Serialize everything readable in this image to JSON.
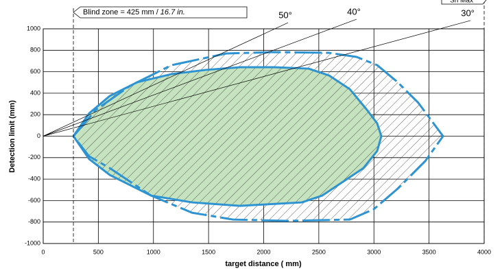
{
  "chart_data": {
    "type": "zone",
    "xlabel": "target distance ( mm)",
    "ylabel": "Detection limit (mm)",
    "xlim": [
      0,
      4000
    ],
    "ylim": [
      -1000,
      1000
    ],
    "xticks": [
      0,
      500,
      1000,
      1500,
      2000,
      2500,
      3000,
      3500,
      4000
    ],
    "yticks": [
      -1000,
      -800,
      -600,
      -400,
      -200,
      0,
      200,
      400,
      600,
      800,
      1000
    ],
    "grid": true,
    "series": [
      {
        "color": "#2e93d1",
        "fill": "hatch",
        "dashed": true,
        "x": [
          274,
          479,
          790,
          1163,
          1660,
          2096,
          2594,
          2843,
          3030,
          3216,
          3403,
          3627,
          3465,
          3216,
          2998,
          2781,
          2221,
          1723,
          1350,
          977,
          603,
          417
        ],
        "values": [
          0,
          246,
          470,
          661,
          770,
          783,
          776,
          738,
          661,
          502,
          310,
          0,
          -233,
          -489,
          -681,
          -777,
          -789,
          -777,
          -713,
          -553,
          -297,
          -188
        ]
      },
      {
        "color": "#2e93d1",
        "fill": "#c6e3bf",
        "dashed": false,
        "x": [
          274,
          417,
          603,
          852,
          1163,
          1474,
          1785,
          2096,
          2407,
          2594,
          2781,
          2936,
          3030,
          3067,
          3030,
          2905,
          2719,
          2532,
          2346,
          1785,
          1350,
          977,
          603,
          417
        ],
        "values": [
          0,
          213,
          374,
          502,
          578,
          617,
          642,
          642,
          629,
          565,
          438,
          246,
          118,
          0,
          -137,
          -297,
          -425,
          -553,
          -617,
          -649,
          -617,
          -553,
          -361,
          -214
        ]
      }
    ],
    "annotations": [
      {
        "label": "50°",
        "x": 2221,
        "y": 1057
      },
      {
        "label": "40°",
        "x": 2843,
        "y": 1089
      },
      {
        "label": "30°",
        "x": 3876,
        "y": 1077
      }
    ],
    "blind_zone": {
      "label": [
        "Blind zone = 425 mm /",
        "16.7 in."
      ],
      "x": 274
    },
    "sn_max": {
      "label": "Sn Max",
      "x": 4000
    }
  }
}
